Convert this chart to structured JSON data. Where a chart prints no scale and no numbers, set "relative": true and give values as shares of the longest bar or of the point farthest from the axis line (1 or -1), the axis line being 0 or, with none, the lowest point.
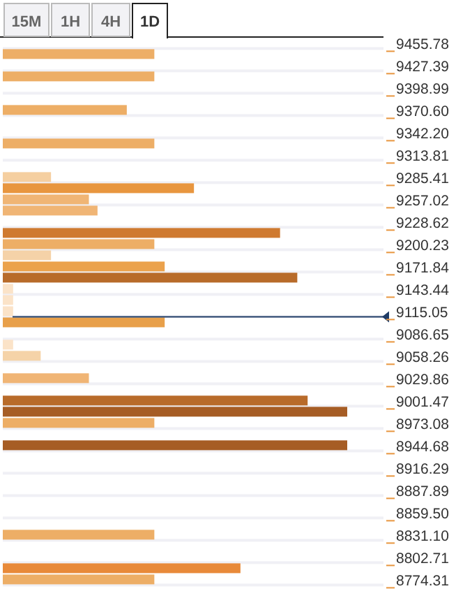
{
  "chart_data": {
    "type": "bar",
    "orientation": "horizontal",
    "relative": true,
    "grid": true,
    "annotations": [
      "15M",
      "1H",
      "4H",
      "1D"
    ],
    "x": [
      9448.7,
      9420.3,
      9377.7,
      9335.1,
      9292.5,
      9278.3,
      9264.1,
      9249.9,
      9221.5,
      9207.3,
      9193.1,
      9178.9,
      9164.7,
      9150.5,
      9136.3,
      9122.1,
      9107.9,
      9079.6,
      9065.4,
      9037.0,
      9008.6,
      8994.4,
      8980.2,
      8951.8,
      8838.2,
      8795.6,
      8781.4
    ],
    "values": [
      0.44,
      0.44,
      0.36,
      0.44,
      0.14,
      0.555,
      0.25,
      0.275,
      0.805,
      0.44,
      0.14,
      0.47,
      0.855,
      0.03,
      0.03,
      0.03,
      0.47,
      0.03,
      0.11,
      0.25,
      0.885,
      1,
      0.44,
      1,
      0.44,
      0.69,
      0.44
    ],
    "colors": [
      "#edae66",
      "#edae66",
      "#edae66",
      "#edae66",
      "#f5cfa0",
      "#e8963f",
      "#f0b575",
      "#f0b575",
      "#cf7a30",
      "#edae66",
      "#f5d2a8",
      "#eba24c",
      "#b86b2a",
      "#fbe3c8",
      "#fbe3c8",
      "#fbe3c8",
      "#e8a04a",
      "#fbe3c8",
      "#f5d3a8",
      "#f0b575",
      "#b86b2a",
      "#a65d25",
      "#edae66",
      "#a65d25",
      "#edae66",
      "#e88a3a",
      "#edae66"
    ],
    "ylim": [
      8774.31,
      9455.78
    ],
    "yticks": [
      {
        "value": 9455.78,
        "label": "9455.78"
      },
      {
        "value": 9427.39,
        "label": "9427.39"
      },
      {
        "value": 9398.99,
        "label": "9398.99"
      },
      {
        "value": 9370.6,
        "label": "9370.60"
      },
      {
        "value": 9342.2,
        "label": "9342.20"
      },
      {
        "value": 9313.81,
        "label": "9313.81"
      },
      {
        "value": 9285.41,
        "label": "9285.41"
      },
      {
        "value": 9257.02,
        "label": "9257.02"
      },
      {
        "value": 9228.62,
        "label": "9228.62"
      },
      {
        "value": 9200.23,
        "label": "9200.23"
      },
      {
        "value": 9171.84,
        "label": "9171.84"
      },
      {
        "value": 9143.44,
        "label": "9143.44"
      },
      {
        "value": 9115.05,
        "label": "9115.05"
      },
      {
        "value": 9086.65,
        "label": "9086.65"
      },
      {
        "value": 9058.26,
        "label": "9058.26"
      },
      {
        "value": 9029.86,
        "label": "9029.86"
      },
      {
        "value": 9001.47,
        "label": "9001.47"
      },
      {
        "value": 8973.08,
        "label": "8973.08"
      },
      {
        "value": 8944.68,
        "label": "8944.68"
      },
      {
        "value": 8916.29,
        "label": "8916.29"
      },
      {
        "value": 8887.89,
        "label": "8887.89"
      },
      {
        "value": 8859.5,
        "label": "8859.50"
      },
      {
        "value": 8831.1,
        "label": "8831.10"
      },
      {
        "value": 8802.71,
        "label": "8802.71"
      },
      {
        "value": 8774.31,
        "label": "8774.31"
      }
    ],
    "ref_lines": [
      {
        "axis": "y",
        "value": 9115.05,
        "color": "#1f3c66"
      }
    ]
  }
}
